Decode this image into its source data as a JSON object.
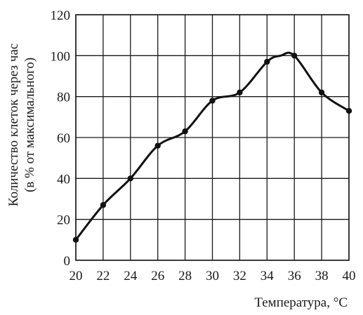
{
  "chart_data": {
    "type": "line",
    "title": "",
    "xlabel": "Температура, °C",
    "ylabel_line1": "Количество клеток через час",
    "ylabel_line2": "(в % от максимального)",
    "xlim": [
      20,
      40
    ],
    "ylim": [
      0,
      120
    ],
    "x_ticks": [
      20,
      22,
      24,
      26,
      28,
      30,
      32,
      34,
      36,
      38,
      40
    ],
    "y_ticks": [
      0,
      20,
      40,
      60,
      80,
      100,
      120
    ],
    "grid": true,
    "series": [
      {
        "x": [
          20,
          22,
          24,
          26,
          28,
          30,
          32,
          34,
          36,
          38,
          40
        ],
        "y": [
          10,
          27,
          40,
          56,
          63,
          78,
          82,
          97,
          100,
          82,
          73
        ]
      }
    ],
    "smooth_extra_points": [
      [
        35,
        100
      ]
    ]
  }
}
